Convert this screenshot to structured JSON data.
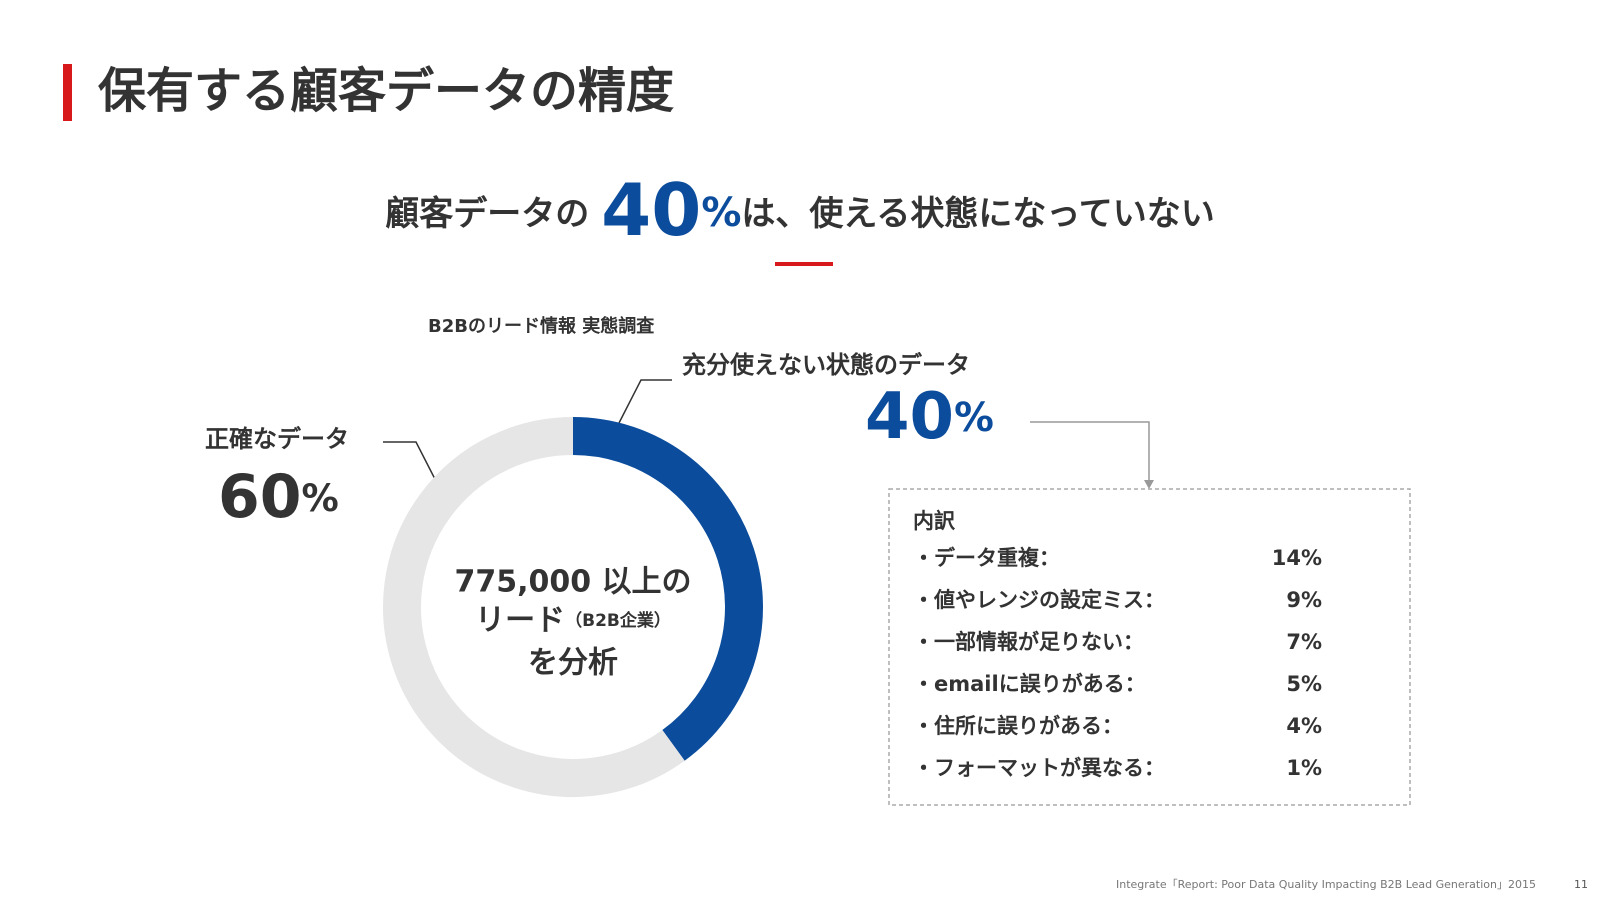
{
  "slide": {
    "title": "保有する顧客データの精度",
    "headline": {
      "prefix": "顧客データの ",
      "number": "40",
      "unit": "%",
      "suffix": "は、使える状態になっていない"
    },
    "source": "Integrate「Report: Poor Data Quality Impacting B2B Lead Generation」2015",
    "page_number": "11"
  },
  "chart_data": {
    "type": "donut",
    "subtitle": "B2Bのリード情報 実態調査",
    "categories": [
      "充分使えない状態のデータ",
      "正確なデータ"
    ],
    "values": [
      40,
      60
    ],
    "unit": "%",
    "colors": [
      "#0b4c9c",
      "#e6e6e6"
    ],
    "center_text": [
      "775,000 以上の",
      "リード",
      "（B2B企業）",
      "を分析"
    ]
  },
  "breakdown": {
    "title": "内訳",
    "unit": "%",
    "items": [
      {
        "label": "・データ重複：",
        "value": 14
      },
      {
        "label": "・値やレンジの設定ミス：",
        "value": 9
      },
      {
        "label": "・一部情報が足りない：",
        "value": 7
      },
      {
        "label": "・emailに誤りがある：",
        "value": 5
      },
      {
        "label": "・住所に誤りがある：",
        "value": 4
      },
      {
        "label": "・フォーマットが異なる：",
        "value": 1
      }
    ]
  }
}
